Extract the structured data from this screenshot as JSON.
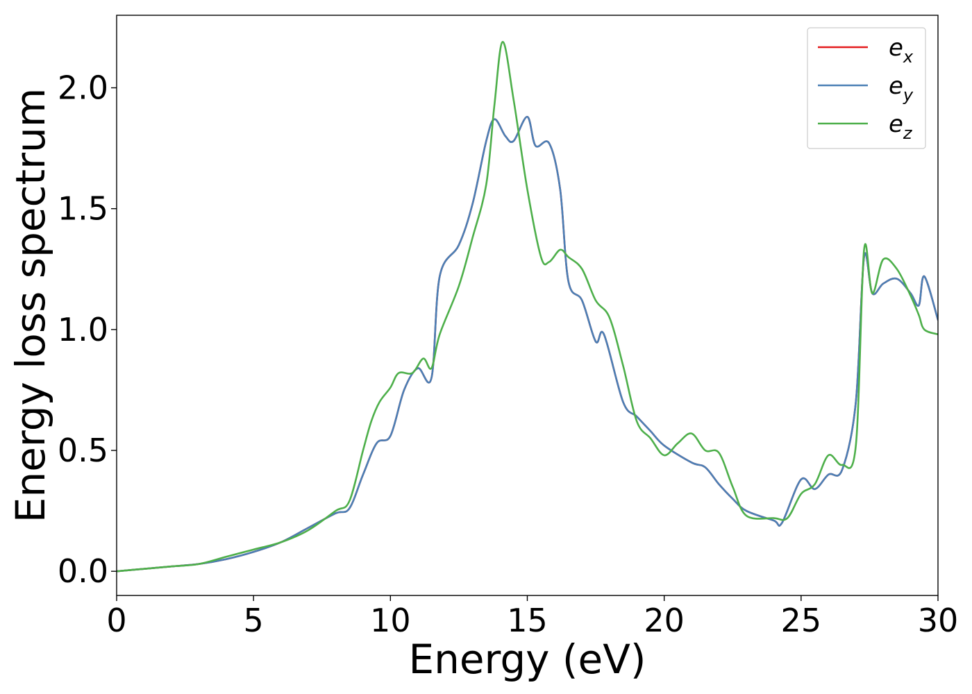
{
  "chart_data": {
    "type": "line",
    "title": "",
    "xlabel": "Energy (eV)",
    "ylabel": "Energy loss spectrum",
    "xlim": [
      0,
      30
    ],
    "ylim": [
      -0.1,
      2.3
    ],
    "xticks": [
      0,
      5,
      10,
      15,
      20,
      25,
      30
    ],
    "yticks": [
      0.0,
      0.5,
      1.0,
      1.5,
      2.0
    ],
    "xtick_labels": [
      "0",
      "5",
      "10",
      "15",
      "20",
      "25",
      "30"
    ],
    "ytick_labels": [
      "0.0",
      "0.5",
      "1.0",
      "1.5",
      "2.0"
    ],
    "grid": false,
    "legend": {
      "position": "top-right"
    },
    "series": [
      {
        "name": "e_x",
        "label_base": "e",
        "label_sub": "x",
        "color": "#e41a1c",
        "x": [
          0,
          1,
          2,
          3,
          4,
          5,
          6,
          7,
          8,
          8.5,
          9,
          9.5,
          10,
          10.5,
          11,
          11.5,
          11.8,
          12.5,
          13,
          13.5,
          13.8,
          14.2,
          14.5,
          15,
          15.3,
          15.8,
          16.2,
          16.5,
          17,
          17.5,
          17.8,
          18.5,
          19,
          19.5,
          20,
          21,
          21.5,
          22,
          22.5,
          23,
          24,
          24.3,
          25,
          25.5,
          26,
          26.5,
          27,
          27.3,
          27.6,
          28,
          28.5,
          29,
          29.3,
          29.5,
          30
        ],
        "y": [
          0,
          0.01,
          0.02,
          0.03,
          0.05,
          0.08,
          0.12,
          0.18,
          0.24,
          0.26,
          0.4,
          0.53,
          0.56,
          0.75,
          0.84,
          0.8,
          1.22,
          1.35,
          1.52,
          1.78,
          1.87,
          1.8,
          1.78,
          1.88,
          1.76,
          1.77,
          1.58,
          1.2,
          1.12,
          0.95,
          0.98,
          0.7,
          0.64,
          0.58,
          0.52,
          0.45,
          0.43,
          0.36,
          0.3,
          0.25,
          0.21,
          0.2,
          0.38,
          0.34,
          0.4,
          0.42,
          0.7,
          1.3,
          1.15,
          1.19,
          1.21,
          1.15,
          1.1,
          1.22,
          1.04
        ]
      },
      {
        "name": "e_y",
        "label_base": "e",
        "label_sub": "y",
        "color": "#4a7fb5",
        "x": [
          0,
          1,
          2,
          3,
          4,
          5,
          6,
          7,
          8,
          8.5,
          9,
          9.5,
          10,
          10.5,
          11,
          11.5,
          11.8,
          12.5,
          13,
          13.5,
          13.8,
          14.2,
          14.5,
          15,
          15.3,
          15.8,
          16.2,
          16.5,
          17,
          17.5,
          17.8,
          18.5,
          19,
          19.5,
          20,
          21,
          21.5,
          22,
          22.5,
          23,
          24,
          24.3,
          25,
          25.5,
          26,
          26.5,
          27,
          27.3,
          27.6,
          28,
          28.5,
          29,
          29.3,
          29.5,
          30
        ],
        "y": [
          0,
          0.01,
          0.02,
          0.03,
          0.05,
          0.08,
          0.12,
          0.18,
          0.24,
          0.26,
          0.4,
          0.53,
          0.56,
          0.75,
          0.84,
          0.8,
          1.22,
          1.35,
          1.52,
          1.78,
          1.87,
          1.8,
          1.78,
          1.88,
          1.76,
          1.77,
          1.58,
          1.2,
          1.12,
          0.95,
          0.98,
          0.7,
          0.64,
          0.58,
          0.52,
          0.45,
          0.43,
          0.36,
          0.3,
          0.25,
          0.21,
          0.2,
          0.38,
          0.34,
          0.4,
          0.42,
          0.7,
          1.3,
          1.15,
          1.19,
          1.21,
          1.15,
          1.1,
          1.22,
          1.04
        ]
      },
      {
        "name": "e_z",
        "label_base": "e",
        "label_sub": "z",
        "color": "#4daf4a",
        "x": [
          0,
          1,
          2,
          3,
          4,
          5,
          6,
          7,
          8,
          8.5,
          9,
          9.3,
          9.6,
          10,
          10.3,
          10.8,
          11.2,
          11.5,
          11.8,
          12.5,
          13,
          13.5,
          13.8,
          14.1,
          14.5,
          15,
          15.5,
          15.8,
          16.2,
          16.5,
          17,
          17.5,
          18,
          18.5,
          19,
          19.5,
          20,
          20.5,
          21,
          21.5,
          22,
          22.5,
          23,
          24,
          24.5,
          25,
          25.5,
          26,
          26.5,
          27,
          27.3,
          27.6,
          28,
          28.5,
          29,
          29.3,
          29.5,
          30
        ],
        "y": [
          0,
          0.01,
          0.02,
          0.03,
          0.06,
          0.09,
          0.12,
          0.17,
          0.25,
          0.29,
          0.5,
          0.62,
          0.7,
          0.76,
          0.82,
          0.82,
          0.88,
          0.84,
          0.98,
          1.18,
          1.38,
          1.6,
          1.93,
          2.19,
          1.95,
          1.58,
          1.3,
          1.28,
          1.33,
          1.3,
          1.25,
          1.12,
          1.05,
          0.85,
          0.62,
          0.55,
          0.48,
          0.53,
          0.57,
          0.5,
          0.49,
          0.35,
          0.23,
          0.22,
          0.22,
          0.32,
          0.36,
          0.48,
          0.44,
          0.52,
          1.33,
          1.15,
          1.29,
          1.25,
          1.14,
          1.06,
          1.0,
          0.98
        ]
      }
    ]
  }
}
